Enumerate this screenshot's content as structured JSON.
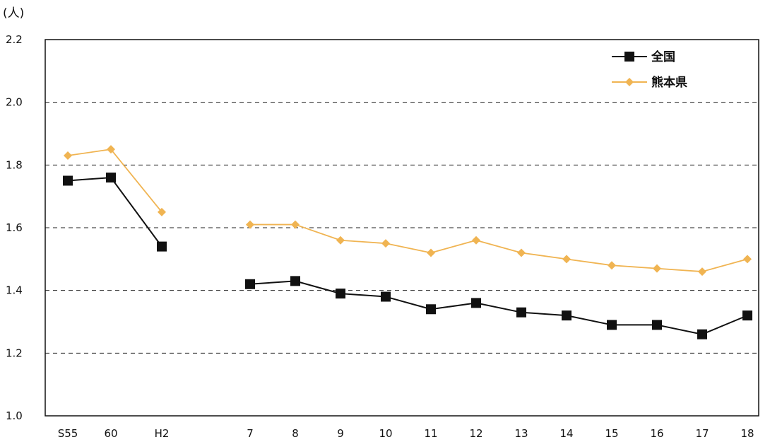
{
  "chart_data": {
    "type": "line",
    "y_unit": "(人)",
    "categories": [
      "S55",
      "60",
      "H2",
      "7",
      "8",
      "9",
      "10",
      "11",
      "12",
      "13",
      "14",
      "15",
      "16",
      "17",
      "18"
    ],
    "series": [
      {
        "name": "全国",
        "color": "#111111",
        "marker": "square",
        "values": [
          1.75,
          1.76,
          1.54,
          1.42,
          1.43,
          1.39,
          1.38,
          1.34,
          1.36,
          1.33,
          1.32,
          1.29,
          1.29,
          1.26,
          1.32
        ]
      },
      {
        "name": "熊本県",
        "color": "#f0b452",
        "marker": "diamond",
        "values": [
          1.83,
          1.85,
          1.65,
          1.61,
          1.61,
          1.56,
          1.55,
          1.52,
          1.56,
          1.52,
          1.5,
          1.48,
          1.47,
          1.46,
          1.5
        ]
      }
    ],
    "line_segments": [
      [
        0,
        2
      ],
      [
        3,
        14
      ]
    ],
    "ylim": [
      1.0,
      2.2
    ],
    "yticks": [
      "1.0",
      "1.2",
      "1.4",
      "1.6",
      "1.8",
      "2.0",
      "2.2"
    ],
    "grid": true,
    "legend_position": "top-right"
  }
}
